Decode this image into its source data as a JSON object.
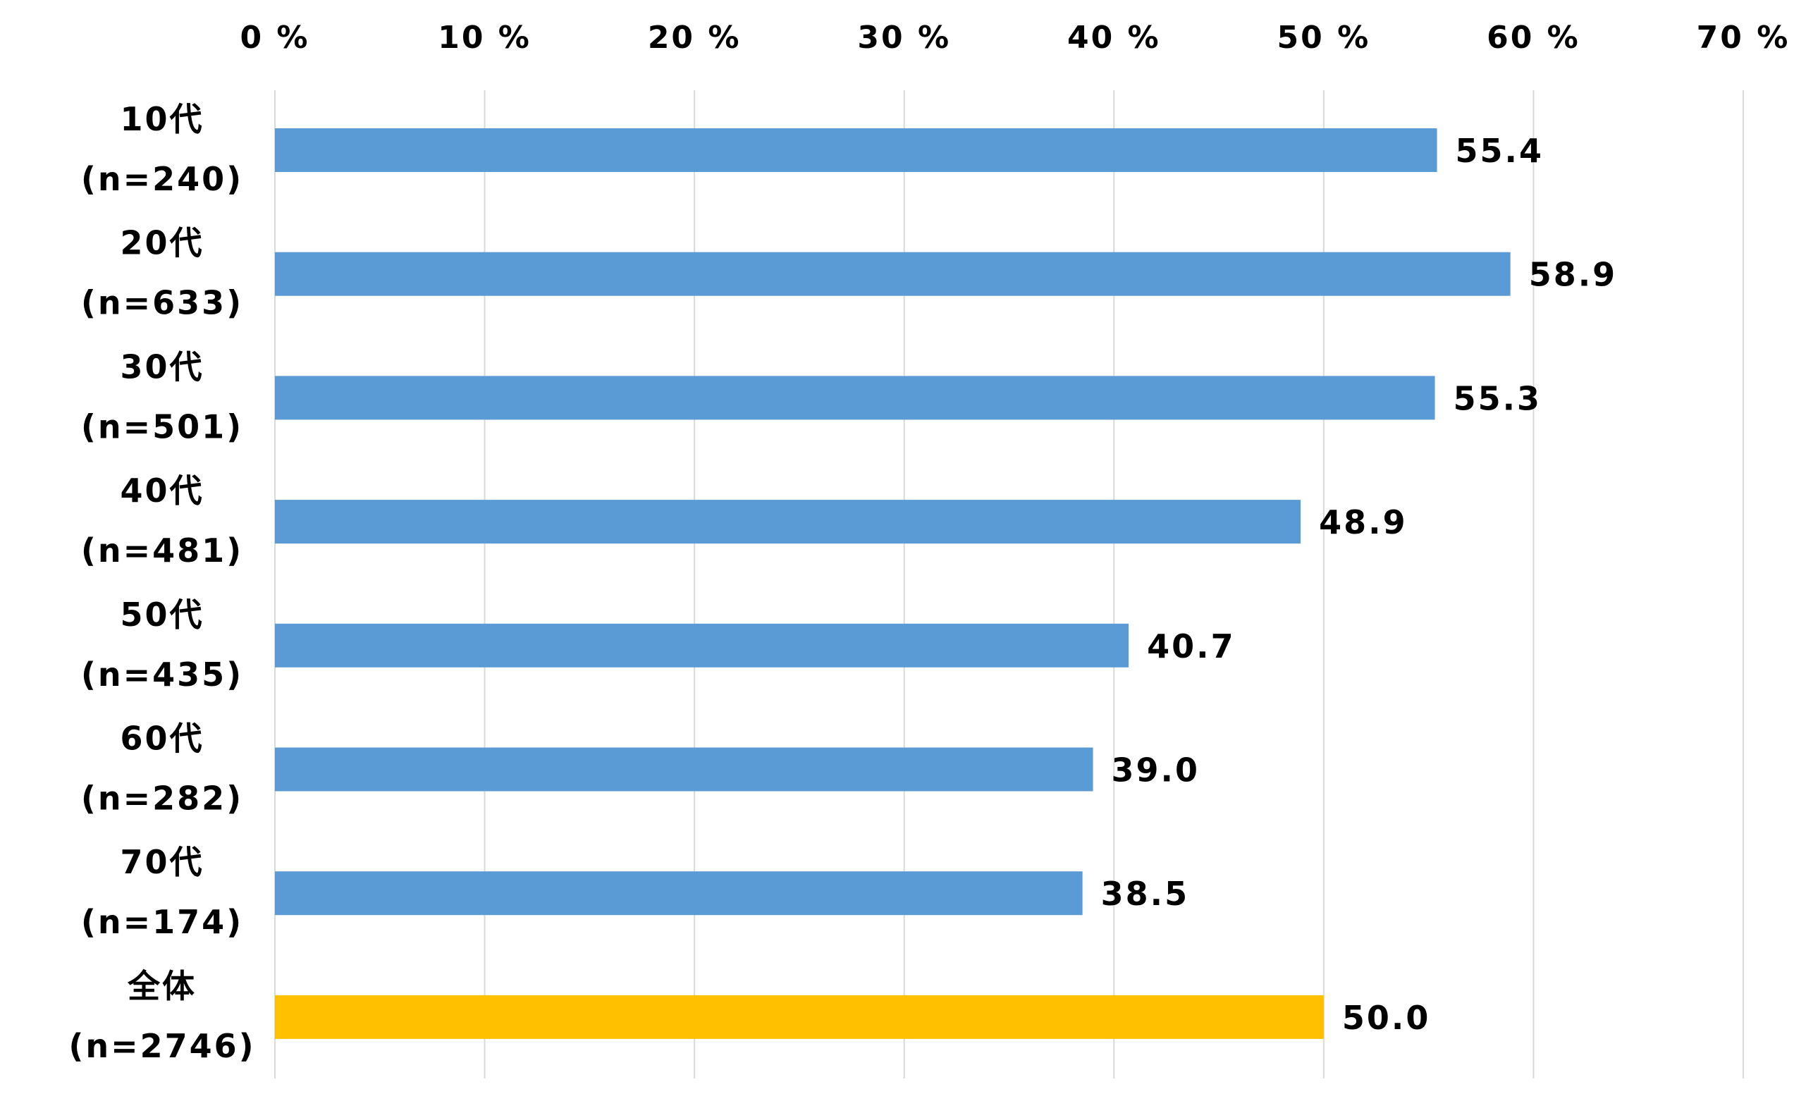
{
  "chart_data": {
    "type": "bar",
    "orientation": "horizontal",
    "categories": [
      [
        "10代",
        "(n=240)"
      ],
      [
        "20代",
        "(n=633)"
      ],
      [
        "30代",
        "(n=501)"
      ],
      [
        "40代",
        "(n=481)"
      ],
      [
        "50代",
        "(n=435)"
      ],
      [
        "60代",
        "(n=282)"
      ],
      [
        "70代",
        "(n=174)"
      ],
      [
        "全体",
        "(n=2746)"
      ]
    ],
    "values": [
      55.4,
      58.9,
      55.3,
      48.9,
      40.7,
      39.0,
      38.5,
      50.0
    ],
    "value_labels": [
      "55.4",
      "58.9",
      "55.3",
      "48.9",
      "40.7",
      "39.0",
      "38.5",
      "50.0"
    ],
    "bar_colors": [
      "#5B9BD5",
      "#5B9BD5",
      "#5B9BD5",
      "#5B9BD5",
      "#5B9BD5",
      "#5B9BD5",
      "#5B9BD5",
      "#FFC000"
    ],
    "xlim": [
      0,
      70
    ],
    "ticks": [
      0,
      10,
      20,
      30,
      40,
      50,
      60,
      70
    ],
    "tick_labels": [
      "0 %",
      "10 %",
      "20 %",
      "30 %",
      "40 %",
      "50 %",
      "60 %",
      "70 %"
    ],
    "axis_position": "top",
    "grid": true,
    "gridline_color": "#D9D9D9",
    "title": "",
    "xlabel": "",
    "ylabel": ""
  }
}
